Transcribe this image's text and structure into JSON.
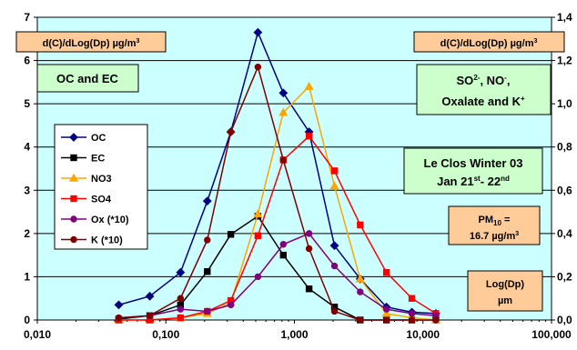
{
  "chart_data": {
    "type": "line",
    "x_axis": {
      "scale": "log",
      "range": [
        0.01,
        100
      ],
      "ticks": [
        "0,010",
        "0,100",
        "1,000",
        "10,000",
        "100,000"
      ]
    },
    "y_left": {
      "range": [
        0,
        7
      ],
      "ticks": [
        "0",
        "1",
        "2",
        "3",
        "4",
        "5",
        "6",
        "7"
      ]
    },
    "y_right": {
      "range": [
        0,
        1.4
      ],
      "ticks": [
        "0,0",
        "0,2",
        "0,4",
        "0,6",
        "0,8",
        "1,0",
        "1,2",
        "1,4"
      ]
    },
    "grid": true,
    "colors": {
      "plot_bg": "#ccffff",
      "box_orange": "#ffcc99",
      "box_green": "#ccffcc"
    },
    "annotations": {
      "left_unit": {
        "pre": "d(C)/dLog(Dp) µg/m",
        "sup": "3"
      },
      "right_unit": {
        "pre": "d(C)/dLog(Dp) µg/m",
        "sup": "3"
      },
      "oc_ec": "OC and EC",
      "ions_line1": {
        "a": "SO",
        "a_sup": "2-",
        "b": ", NO",
        "b_sup": "-",
        "c": ","
      },
      "ions_line2": {
        "a": "Oxalate and K",
        "a_sup": "+"
      },
      "site_line1": "Le Clos Winter 03",
      "site_line2": {
        "a": "Jan 21",
        "a_sup": "st",
        "b": "- 22",
        "b_sup": "nd"
      },
      "pm_line1": {
        "a": "PM",
        "a_sub": "10",
        "b": " ="
      },
      "pm_line2": {
        "a": "16.7 µg/m",
        "a_sup": "3"
      },
      "xunit_line1": "Log(Dp)",
      "xunit_line2": "µm"
    },
    "series": [
      {
        "name": "OC",
        "axis": "left",
        "color": "#000080",
        "marker": "diamond",
        "x": [
          0.043,
          0.075,
          0.13,
          0.21,
          0.32,
          0.52,
          0.82,
          1.3,
          2.05,
          3.25,
          5.2,
          8.2,
          12.6
        ],
        "y": [
          0.35,
          0.55,
          1.1,
          2.75,
          4.35,
          6.65,
          5.25,
          4.35,
          1.72,
          0.95,
          0.3,
          0.18,
          0.15
        ]
      },
      {
        "name": "EC",
        "axis": "left",
        "color": "#000000",
        "marker": "square",
        "x": [
          0.043,
          0.075,
          0.13,
          0.21,
          0.32,
          0.52,
          0.82,
          1.3,
          2.05,
          3.25,
          5.2,
          8.2,
          12.6
        ],
        "y": [
          0.02,
          0.1,
          0.35,
          1.12,
          1.98,
          2.4,
          1.5,
          0.72,
          0.3,
          0.0,
          0.0,
          0.0,
          0.0
        ]
      },
      {
        "name": "NO3",
        "axis": "right",
        "color": "#ffa500",
        "marker": "triangle",
        "x": [
          0.043,
          0.075,
          0.13,
          0.21,
          0.32,
          0.52,
          0.82,
          1.3,
          2.05,
          3.25,
          5.2,
          8.2,
          12.6
        ],
        "y": [
          0.0,
          0.0,
          0.01,
          0.03,
          0.08,
          0.49,
          0.96,
          1.08,
          0.62,
          0.19,
          0.03,
          0.01,
          0.0
        ]
      },
      {
        "name": "SO4",
        "axis": "right",
        "color": "#ff0000",
        "marker": "square",
        "x": [
          0.043,
          0.075,
          0.13,
          0.21,
          0.32,
          0.52,
          0.82,
          1.3,
          2.05,
          3.25,
          5.2,
          8.2,
          12.6
        ],
        "y": [
          0.0,
          0.0,
          0.01,
          0.04,
          0.09,
          0.39,
          0.74,
          0.85,
          0.69,
          0.44,
          0.22,
          0.1,
          0.03
        ]
      },
      {
        "name": "Ox (*10)",
        "axis": "right",
        "color": "#800080",
        "marker": "circle",
        "x": [
          0.043,
          0.075,
          0.13,
          0.21,
          0.32,
          0.52,
          0.82,
          1.3,
          2.05,
          3.25,
          5.2,
          8.2,
          12.6
        ],
        "y": [
          0.01,
          0.02,
          0.05,
          0.04,
          0.07,
          0.2,
          0.35,
          0.4,
          0.25,
          0.13,
          0.05,
          0.03,
          0.02
        ]
      },
      {
        "name": "K (*10)",
        "axis": "right",
        "color": "#800000",
        "marker": "circle",
        "x": [
          0.043,
          0.075,
          0.13,
          0.21,
          0.32,
          0.52,
          0.82,
          1.3,
          2.05,
          3.25,
          5.2,
          8.2,
          12.6
        ],
        "y": [
          0.01,
          0.02,
          0.1,
          0.37,
          0.87,
          1.17,
          0.74,
          0.33,
          0.04,
          0.0,
          0.0,
          0.0,
          0.0
        ]
      }
    ]
  }
}
